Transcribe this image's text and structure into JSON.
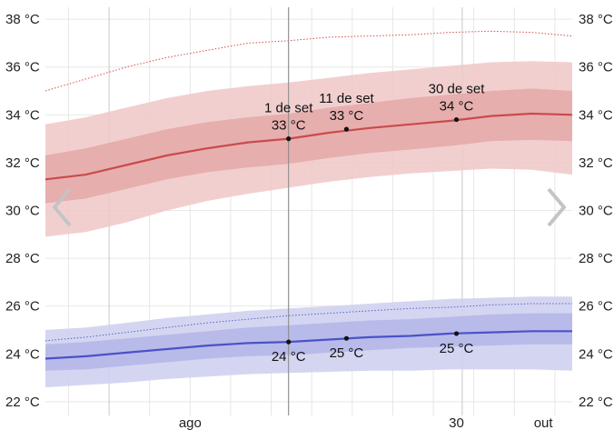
{
  "chart_data": {
    "type": "area",
    "y_unit": "°C",
    "ylim": [
      21.5,
      38.5
    ],
    "y_ticks": [
      22,
      24,
      26,
      28,
      30,
      32,
      34,
      36,
      38
    ],
    "y_tick_labels": [
      "22 °C",
      "24 °C",
      "26 °C",
      "28 °C",
      "30 °C",
      "32 °C",
      "34 °C",
      "36 °C",
      "38 °C"
    ],
    "x_start": "2021-07-21",
    "x_end": "2021-10-20",
    "x_tick_labels": [
      {
        "date": "2021-08-15",
        "label": "ago"
      },
      {
        "date": "2021-09-30",
        "label": "30"
      },
      {
        "date": "2021-10-15",
        "label": "out"
      }
    ],
    "month_lines": [
      "2021-08-01",
      "2021-09-01",
      "2021-10-01"
    ],
    "minor_lines": [
      "2021-07-25",
      "2021-08-08",
      "2021-08-15",
      "2021-08-22",
      "2021-08-29",
      "2021-09-05",
      "2021-09-12",
      "2021-09-19",
      "2021-09-26",
      "2021-10-03",
      "2021-10-10",
      "2021-10-17"
    ],
    "grid": true,
    "colors": {
      "high_line": "#c94b4b",
      "high_band_outer": "#f0c7c7",
      "high_band_inner": "#e3a3a3",
      "high_record": "#d84a4a",
      "low_line": "#4a52c8",
      "low_band_outer": "#cfd1f0",
      "low_band_inner": "#afb2e6",
      "low_record": "#5a62c8"
    },
    "high": {
      "x": [
        "2021-07-21",
        "2021-07-28",
        "2021-08-04",
        "2021-08-11",
        "2021-08-18",
        "2021-08-25",
        "2021-09-01",
        "2021-09-08",
        "2021-09-15",
        "2021-09-22",
        "2021-09-29",
        "2021-10-06",
        "2021-10-13",
        "2021-10-20"
      ],
      "mean": [
        31.3,
        31.5,
        31.9,
        32.3,
        32.6,
        32.85,
        33.0,
        33.25,
        33.45,
        33.6,
        33.75,
        33.95,
        34.05,
        34.0
      ],
      "p25": [
        30.3,
        30.5,
        30.9,
        31.3,
        31.6,
        31.8,
        31.95,
        32.2,
        32.4,
        32.55,
        32.7,
        32.9,
        32.95,
        32.9
      ],
      "p75": [
        32.3,
        32.6,
        33.0,
        33.4,
        33.7,
        33.9,
        34.05,
        34.3,
        34.5,
        34.7,
        34.85,
        35.0,
        35.1,
        35.0
      ],
      "p10": [
        28.9,
        29.1,
        29.5,
        30.0,
        30.4,
        30.7,
        30.95,
        31.2,
        31.4,
        31.55,
        31.65,
        31.75,
        31.7,
        31.5
      ],
      "p90": [
        33.6,
        33.9,
        34.3,
        34.7,
        35.0,
        35.2,
        35.35,
        35.55,
        35.75,
        35.9,
        36.05,
        36.2,
        36.25,
        36.2
      ],
      "record": [
        35.0,
        35.5,
        36.0,
        36.4,
        36.7,
        37.0,
        37.1,
        37.25,
        37.3,
        37.35,
        37.45,
        37.5,
        37.45,
        37.3
      ]
    },
    "low": {
      "x": [
        "2021-07-21",
        "2021-07-28",
        "2021-08-04",
        "2021-08-11",
        "2021-08-18",
        "2021-08-25",
        "2021-09-01",
        "2021-09-08",
        "2021-09-15",
        "2021-09-22",
        "2021-09-29",
        "2021-10-06",
        "2021-10-13",
        "2021-10-20"
      ],
      "mean": [
        23.8,
        23.9,
        24.05,
        24.2,
        24.35,
        24.45,
        24.5,
        24.6,
        24.7,
        24.75,
        24.85,
        24.9,
        24.95,
        24.95
      ],
      "p25": [
        23.3,
        23.35,
        23.5,
        23.65,
        23.8,
        23.9,
        23.95,
        24.05,
        24.15,
        24.25,
        24.3,
        24.35,
        24.4,
        24.4
      ],
      "p75": [
        24.4,
        24.5,
        24.65,
        24.8,
        24.95,
        25.1,
        25.2,
        25.3,
        25.4,
        25.45,
        25.55,
        25.65,
        25.7,
        25.7
      ],
      "p10": [
        22.6,
        22.7,
        22.8,
        22.95,
        23.05,
        23.15,
        23.2,
        23.25,
        23.3,
        23.3,
        23.35,
        23.35,
        23.35,
        23.3
      ],
      "p90": [
        25.0,
        25.1,
        25.3,
        25.5,
        25.65,
        25.8,
        25.9,
        26.0,
        26.1,
        26.2,
        26.3,
        26.35,
        26.4,
        26.4
      ],
      "record": [
        24.55,
        24.7,
        24.9,
        25.1,
        25.3,
        25.45,
        25.6,
        25.7,
        25.8,
        25.9,
        25.95,
        26.05,
        26.1,
        26.1
      ]
    },
    "annotations": [
      {
        "date": "2021-09-01",
        "value": 33.0,
        "series": "high",
        "label": "1 de set",
        "value_label": "33 °C"
      },
      {
        "date": "2021-09-11",
        "value": 33.4,
        "series": "high",
        "label": "11 de set",
        "value_label": "33 °C"
      },
      {
        "date": "2021-09-30",
        "value": 33.8,
        "series": "high",
        "label": "30 de set",
        "value_label": "34 °C"
      },
      {
        "date": "2021-09-01",
        "value": 24.5,
        "series": "low",
        "label": "",
        "value_label": "24 °C"
      },
      {
        "date": "2021-09-11",
        "value": 24.65,
        "series": "low",
        "label": "",
        "value_label": "25 °C"
      },
      {
        "date": "2021-09-30",
        "value": 24.85,
        "series": "low",
        "label": "",
        "value_label": "25 °C"
      }
    ],
    "cursor_date": "2021-09-01"
  },
  "nav": {
    "prev_icon": "chevron-left-icon",
    "next_icon": "chevron-right-icon"
  }
}
